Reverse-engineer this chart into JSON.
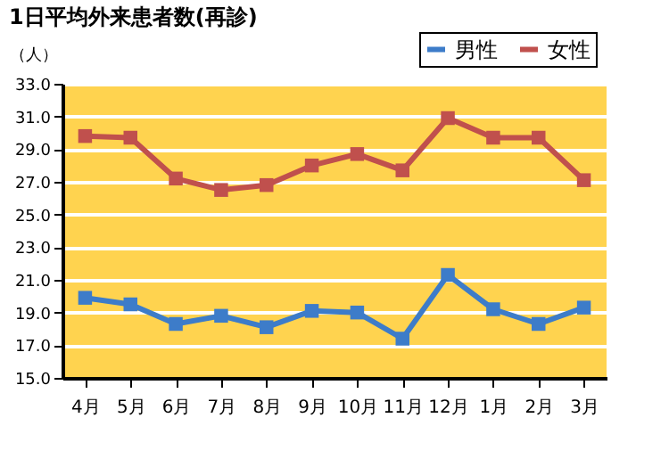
{
  "chart_data": {
    "type": "line",
    "title": "1日平均外来患者数(再診)",
    "ylabel": "（人）",
    "categories": [
      "4月",
      "5月",
      "6月",
      "7月",
      "8月",
      "9月",
      "10月",
      "11月",
      "12月",
      "1月",
      "2月",
      "3月"
    ],
    "series": [
      {
        "name": "男性",
        "color": "#3d7cc9",
        "values": [
          19.9,
          19.5,
          18.3,
          18.8,
          18.1,
          19.1,
          19.0,
          17.4,
          21.3,
          19.2,
          18.3,
          19.3
        ]
      },
      {
        "name": "女性",
        "color": "#c0504d",
        "values": [
          29.8,
          29.7,
          27.2,
          26.5,
          26.8,
          28.0,
          28.7,
          27.7,
          30.9,
          29.7,
          29.7,
          27.1
        ]
      }
    ],
    "ylim": [
      15.0,
      33.0
    ],
    "yticks": [
      {
        "value": 15,
        "label": "15.0"
      },
      {
        "value": 17,
        "label": "17.0"
      },
      {
        "value": 19,
        "label": "19.0"
      },
      {
        "value": 21,
        "label": "21.0"
      },
      {
        "value": 23,
        "label": "23.0"
      },
      {
        "value": 25,
        "label": "25.0"
      },
      {
        "value": 27,
        "label": "27.0"
      },
      {
        "value": 29,
        "label": "29.0"
      },
      {
        "value": 31,
        "label": "31.0"
      },
      {
        "value": 33,
        "label": "33.0"
      }
    ],
    "grid": "y",
    "legend": "top right",
    "marker": "square",
    "line_style": "solid"
  }
}
